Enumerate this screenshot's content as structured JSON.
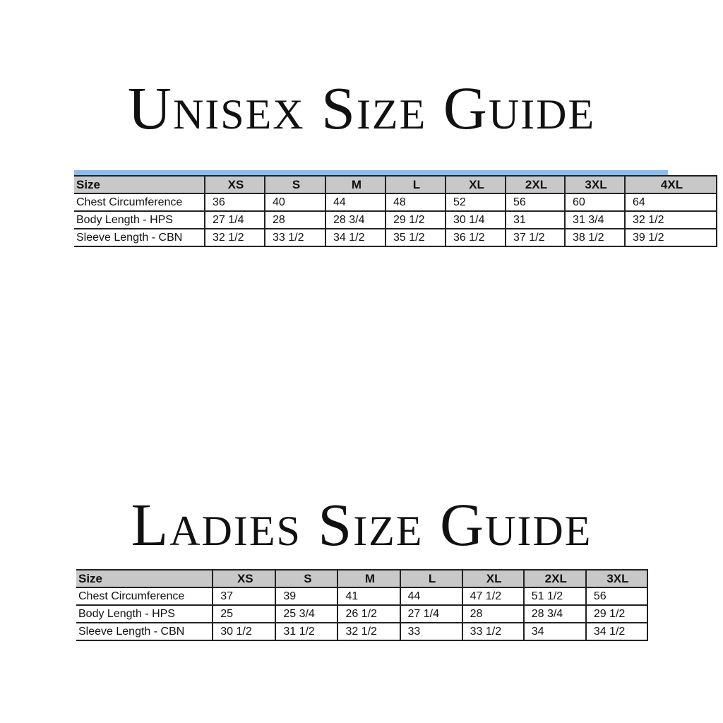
{
  "unisex": {
    "title": "Unisex Size Guide",
    "header": [
      "Size",
      "XS",
      "S",
      "M",
      "L",
      "XL",
      "2XL",
      "3XL",
      "4XL"
    ],
    "rows": [
      [
        "Chest Circumference",
        "36",
        "40",
        "44",
        "48",
        "52",
        "56",
        "60",
        "64"
      ],
      [
        "Body Length - HPS",
        "27 1/4",
        "28",
        "28 3/4",
        "29 1/2",
        "30 1/4",
        "31",
        "31 3/4",
        "32 1/2"
      ],
      [
        "Sleeve Length - CBN",
        "32 1/2",
        "33 1/2",
        "34 1/2",
        "35 1/2",
        "36 1/2",
        "37 1/2",
        "38 1/2",
        "39 1/2"
      ]
    ]
  },
  "ladies": {
    "title": "Ladies Size Guide",
    "header": [
      "Size",
      "XS",
      "S",
      "M",
      "L",
      "XL",
      "2XL",
      "3XL"
    ],
    "rows": [
      [
        "Chest Circumference",
        "37",
        "39",
        "41",
        "44",
        "47 1/2",
        "51 1/2",
        "56"
      ],
      [
        "Body Length - HPS",
        "25",
        "25 3/4",
        "26 1/2",
        "27 1/4",
        "28",
        "28 3/4",
        "29 1/2"
      ],
      [
        "Sleeve Length - CBN",
        "30 1/2",
        "31 1/2",
        "32 1/2",
        "33",
        "33 1/2",
        "34",
        "34 1/2"
      ]
    ]
  },
  "colors": {
    "header_bg": "#c8c8c8",
    "top_bar": "#8bbcef"
  }
}
